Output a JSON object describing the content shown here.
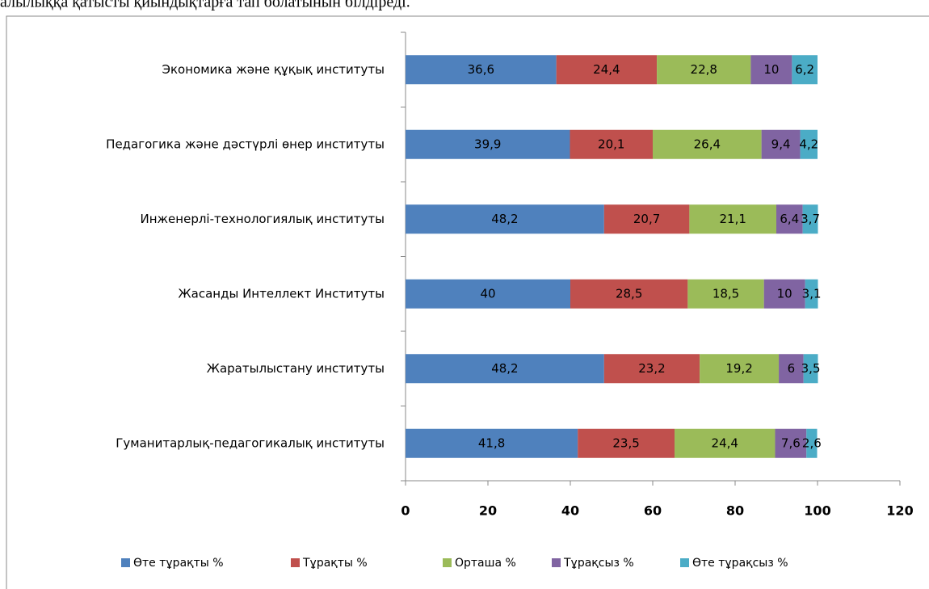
{
  "header_text": "алылыққа қатысты қиындықтарға тап болатынын білдіреді.",
  "chart_data": {
    "type": "stacked_barh",
    "categories": [
      "Экономика және құқық институты",
      "Педагогика және дәстүрлі өнер институты",
      "Инженерлі-технологиялық институты",
      "Жасанды Интеллект Институты",
      "Жаратылыстану институты",
      "Гуманитарлық-педагогикалық институты"
    ],
    "series": [
      {
        "name": "Өте тұрақты %",
        "color": "#4f81bd",
        "values": [
          36.6,
          39.9,
          48.2,
          40,
          48.2,
          41.8
        ],
        "value_labels": [
          "36,6",
          "39,9",
          "48,2",
          "40",
          "48,2",
          "41,8"
        ]
      },
      {
        "name": "Тұрақты %",
        "color": "#c0504d",
        "values": [
          24.4,
          20.1,
          20.7,
          28.5,
          23.2,
          23.5
        ],
        "value_labels": [
          "24,4",
          "20,1",
          "20,7",
          "28,5",
          "23,2",
          "23,5"
        ]
      },
      {
        "name": "Орташа %",
        "color": "#9bbb59",
        "values": [
          22.8,
          26.4,
          21.1,
          18.5,
          19.2,
          24.4
        ],
        "value_labels": [
          "22,8",
          "26,4",
          "21,1",
          "18,5",
          "19,2",
          "24,4"
        ]
      },
      {
        "name": "Тұрақсыз %",
        "color": "#8064a2",
        "values": [
          10,
          9.4,
          6.4,
          10,
          6,
          7.6
        ],
        "value_labels": [
          "10",
          "9,4",
          "6,4",
          "10",
          "6",
          "7,6"
        ]
      },
      {
        "name": "Өте тұрақсыз %",
        "color": "#4bacc6",
        "values": [
          6.2,
          4.2,
          3.7,
          3.1,
          3.5,
          2.6
        ],
        "value_labels": [
          "6,2",
          "4,2",
          "3,7",
          "3,1",
          "3,5",
          "2,6"
        ]
      }
    ],
    "xlim": [
      0,
      120
    ],
    "xticks": [
      0,
      20,
      40,
      60,
      80,
      100,
      120
    ],
    "legend": "bottom"
  }
}
